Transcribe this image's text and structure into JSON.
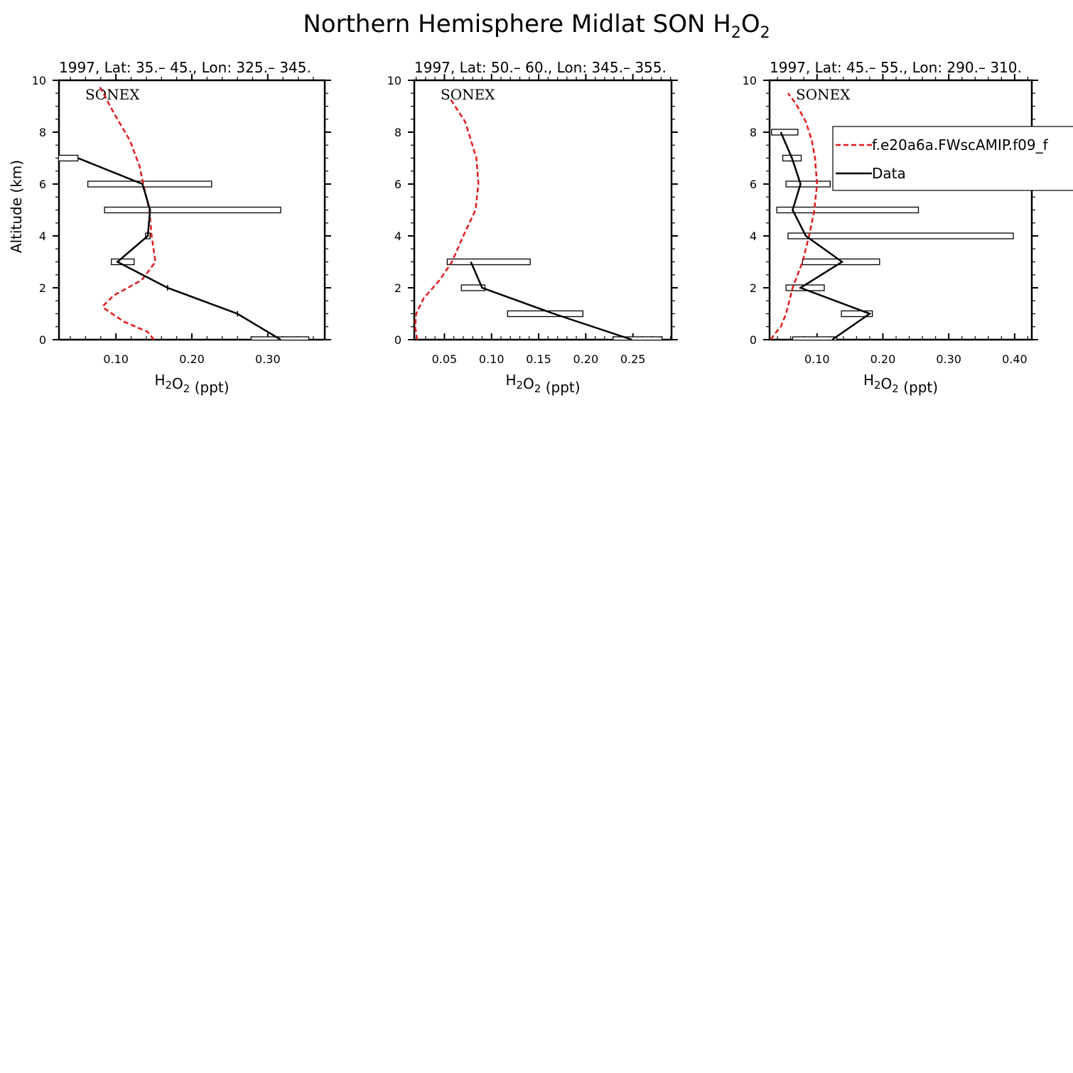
{
  "figure": {
    "title": "Northern Hemisphere Midlat SON H",
    "title_sub1": "2",
    "title_mid": "O",
    "title_sub2": "2"
  },
  "legend": {
    "model_label": "f.e20a6a.FWscAMIP.f09_f",
    "model_color": "#e31a1c",
    "data_label": "Data",
    "data_color": "#000000"
  },
  "chart_data": [
    {
      "type": "line",
      "title": "1997, Lat: 35.– 45., Lon: 325.– 345.",
      "campaign": "SONEX",
      "xlabel": "H2O2 (ppt)",
      "ylabel": "Altitude (km)",
      "xlim": [
        0.025,
        0.375
      ],
      "ylim": [
        0,
        10
      ],
      "xticks": [
        0.1,
        0.2,
        0.3
      ],
      "xtick_labels": [
        "0.10",
        "0.20",
        "0.30"
      ],
      "yticks": [
        0,
        2,
        4,
        6,
        8,
        10
      ],
      "ytick_labels": [
        "0",
        "2",
        "4",
        "6",
        "8",
        "10"
      ],
      "model": {
        "x": [
          0.15,
          0.142,
          0.11,
          0.085,
          0.083,
          0.097,
          0.134,
          0.152,
          0.147,
          0.144,
          0.136,
          0.131,
          0.118,
          0.098,
          0.078
        ],
        "y": [
          0,
          0.3,
          0.7,
          1.2,
          1.3,
          1.7,
          2.3,
          3.0,
          4.0,
          5.0,
          6.0,
          6.7,
          7.7,
          8.7,
          9.8
        ]
      },
      "data": {
        "x": [
          0.317,
          0.26,
          0.168,
          0.102,
          0.142,
          0.145,
          0.135,
          0.05
        ],
        "y": [
          0,
          1,
          2,
          3,
          4,
          5,
          6,
          7
        ]
      },
      "ranges": [
        {
          "y": 0,
          "lo": 0.278,
          "hi": 0.354
        },
        {
          "y": 1,
          "lo": 0.26,
          "hi": 0.26
        },
        {
          "y": 2,
          "lo": 0.168,
          "hi": 0.168
        },
        {
          "y": 3,
          "lo": 0.094,
          "hi": 0.124
        },
        {
          "y": 4,
          "lo": 0.139,
          "hi": 0.145
        },
        {
          "y": 5,
          "lo": 0.085,
          "hi": 0.317
        },
        {
          "y": 6,
          "lo": 0.063,
          "hi": 0.226
        },
        {
          "y": 7,
          "lo": 0.023,
          "hi": 0.05
        }
      ],
      "ylabel_shown": true
    },
    {
      "type": "line",
      "title": "1997, Lat: 50.– 60., Lon: 345.– 355.",
      "campaign": "SONEX",
      "xlabel": "H2O2 (ppt)",
      "ylabel": "",
      "xlim": [
        0.018,
        0.291
      ],
      "ylim": [
        0,
        10
      ],
      "xticks": [
        0.05,
        0.1,
        0.15,
        0.2,
        0.25
      ],
      "xtick_labels": [
        "0.05",
        "0.10",
        "0.15",
        "0.20",
        "0.25"
      ],
      "yticks": [
        0,
        2,
        4,
        6,
        8,
        10
      ],
      "ytick_labels": [
        "0",
        "2",
        "4",
        "6",
        "8",
        "10"
      ],
      "model": {
        "x": [
          0.021,
          0.019,
          0.02,
          0.028,
          0.045,
          0.058,
          0.07,
          0.083,
          0.086,
          0.084,
          0.072,
          0.056
        ],
        "y": [
          0,
          0.5,
          1.0,
          1.6,
          2.3,
          3.0,
          4.0,
          5.0,
          6.0,
          7.0,
          8.4,
          9.3
        ]
      },
      "data": {
        "x": [
          0.249,
          0.166,
          0.09,
          0.078
        ],
        "y": [
          0,
          1,
          2,
          3
        ]
      },
      "ranges": [
        {
          "y": 0,
          "lo": 0.229,
          "hi": 0.281
        },
        {
          "y": 1,
          "lo": 0.117,
          "hi": 0.197
        },
        {
          "y": 2,
          "lo": 0.068,
          "hi": 0.093
        },
        {
          "y": 3,
          "lo": 0.053,
          "hi": 0.141
        }
      ],
      "ylabel_shown": false
    },
    {
      "type": "line",
      "title": "1997, Lat: 45.– 55., Lon: 290.– 310.",
      "campaign": "SONEX",
      "xlabel": "H2O2 (ppt)",
      "ylabel": "",
      "xlim": [
        0.028,
        0.426
      ],
      "ylim": [
        0,
        10
      ],
      "xticks": [
        0.1,
        0.2,
        0.3,
        0.4
      ],
      "xtick_labels": [
        "0.10",
        "0.20",
        "0.30",
        "0.40"
      ],
      "yticks": [
        0,
        2,
        4,
        6,
        8,
        10
      ],
      "ytick_labels": [
        "0",
        "2",
        "4",
        "6",
        "8",
        "10"
      ],
      "model": {
        "x": [
          0.03,
          0.035,
          0.045,
          0.053,
          0.063,
          0.078,
          0.088,
          0.096,
          0.1,
          0.097,
          0.092,
          0.083,
          0.068,
          0.056
        ],
        "y": [
          0,
          0.2,
          0.5,
          1.0,
          2.0,
          3.0,
          4.0,
          5.0,
          6.0,
          7.0,
          7.7,
          8.4,
          9.1,
          9.5
        ]
      },
      "data": {
        "x": [
          0.123,
          0.18,
          0.075,
          0.138,
          0.083,
          0.063,
          0.075,
          0.062,
          0.045
        ],
        "y": [
          0,
          1,
          2,
          3,
          4,
          5,
          6,
          7,
          8
        ]
      },
      "ranges": [
        {
          "y": 0,
          "lo": 0.063,
          "hi": 0.13
        },
        {
          "y": 1,
          "lo": 0.137,
          "hi": 0.184
        },
        {
          "y": 2,
          "lo": 0.053,
          "hi": 0.111
        },
        {
          "y": 3,
          "lo": 0.078,
          "hi": 0.195
        },
        {
          "y": 4,
          "lo": 0.056,
          "hi": 0.398
        },
        {
          "y": 5,
          "lo": 0.039,
          "hi": 0.254
        },
        {
          "y": 6,
          "lo": 0.053,
          "hi": 0.12
        },
        {
          "y": 7,
          "lo": 0.048,
          "hi": 0.076
        },
        {
          "y": 8,
          "lo": 0.031,
          "hi": 0.071
        }
      ],
      "ylabel_shown": false
    }
  ]
}
